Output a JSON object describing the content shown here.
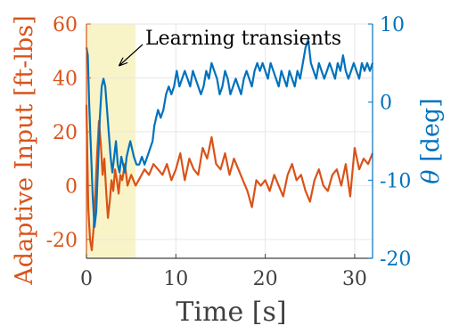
{
  "chart_data": {
    "type": "line",
    "xlabel": "Time [s]",
    "ylabel_left": "Adaptive Input [ft-lbs]",
    "ylabel_right_symbol": "θ",
    "ylabel_right_unit": "[deg]",
    "xlim": [
      0,
      32
    ],
    "ylim_left": [
      -27,
      60
    ],
    "ylim_right": [
      -20,
      10
    ],
    "xticks": [
      0,
      10,
      20,
      30
    ],
    "yticks_left": [
      -20,
      0,
      20,
      40,
      60
    ],
    "yticks_right": [
      -20,
      -10,
      0,
      10
    ],
    "grid": true,
    "annotation": {
      "text": "Learning transients",
      "arrow_target": [
        3.5,
        44
      ],
      "highlight_x": [
        0,
        5.5
      ],
      "highlight_color": "#f9f4c8"
    },
    "series": [
      {
        "axis": "left",
        "color": "#d95319",
        "points": [
          [
            0,
            30
          ],
          [
            0.2,
            -8
          ],
          [
            0.4,
            -20
          ],
          [
            0.6,
            -24
          ],
          [
            0.8,
            -16
          ],
          [
            1.0,
            -2
          ],
          [
            1.2,
            12
          ],
          [
            1.4,
            24
          ],
          [
            1.6,
            16
          ],
          [
            1.8,
            4
          ],
          [
            2.0,
            10
          ],
          [
            2.2,
            -2
          ],
          [
            2.4,
            -12
          ],
          [
            2.6,
            -6
          ],
          [
            2.8,
            2
          ],
          [
            3.0,
            -2
          ],
          [
            3.2,
            6
          ],
          [
            3.4,
            2
          ],
          [
            3.6,
            -3
          ],
          [
            3.8,
            4
          ],
          [
            4.0,
            2
          ],
          [
            4.3,
            8
          ],
          [
            4.6,
            0
          ],
          [
            5.0,
            4
          ],
          [
            5.5,
            0
          ],
          [
            6.0,
            3
          ],
          [
            6.5,
            6
          ],
          [
            7.0,
            4
          ],
          [
            7.5,
            8
          ],
          [
            8.0,
            6
          ],
          [
            8.5,
            4
          ],
          [
            9.0,
            8
          ],
          [
            9.5,
            2
          ],
          [
            10.0,
            6
          ],
          [
            10.5,
            12
          ],
          [
            11.0,
            2
          ],
          [
            11.5,
            10
          ],
          [
            12.0,
            6
          ],
          [
            12.5,
            4
          ],
          [
            13.0,
            14
          ],
          [
            13.5,
            10
          ],
          [
            14.0,
            18
          ],
          [
            14.5,
            8
          ],
          [
            15.0,
            6
          ],
          [
            15.5,
            12
          ],
          [
            16.0,
            4
          ],
          [
            16.5,
            10
          ],
          [
            17.0,
            6
          ],
          [
            17.5,
            2
          ],
          [
            18.0,
            -2
          ],
          [
            18.5,
            -8
          ],
          [
            19.0,
            2
          ],
          [
            19.5,
            0
          ],
          [
            20.0,
            2
          ],
          [
            20.5,
            -2
          ],
          [
            21.0,
            4
          ],
          [
            21.5,
            0
          ],
          [
            22.0,
            -4
          ],
          [
            22.5,
            4
          ],
          [
            23.0,
            8
          ],
          [
            23.5,
            2
          ],
          [
            24.0,
            4
          ],
          [
            24.5,
            -2
          ],
          [
            25.0,
            -6
          ],
          [
            25.5,
            2
          ],
          [
            26.0,
            6
          ],
          [
            26.5,
            0
          ],
          [
            27.0,
            -2
          ],
          [
            27.5,
            4
          ],
          [
            28.0,
            6
          ],
          [
            28.5,
            0
          ],
          [
            29.0,
            8
          ],
          [
            29.5,
            -4
          ],
          [
            30.0,
            14
          ],
          [
            30.5,
            6
          ],
          [
            31.0,
            10
          ],
          [
            31.5,
            8
          ],
          [
            32.0,
            12
          ]
        ]
      },
      {
        "axis": "right",
        "color": "#0072bd",
        "points": [
          [
            0,
            7
          ],
          [
            0.15,
            6
          ],
          [
            0.3,
            0
          ],
          [
            0.5,
            -6
          ],
          [
            0.7,
            -12
          ],
          [
            0.9,
            -16
          ],
          [
            1.1,
            -14
          ],
          [
            1.3,
            -8
          ],
          [
            1.5,
            -2
          ],
          [
            1.7,
            2
          ],
          [
            1.9,
            3
          ],
          [
            2.1,
            2
          ],
          [
            2.3,
            -1
          ],
          [
            2.5,
            -4
          ],
          [
            2.7,
            -7
          ],
          [
            2.9,
            -9
          ],
          [
            3.1,
            -7
          ],
          [
            3.3,
            -5
          ],
          [
            3.5,
            -8
          ],
          [
            3.7,
            -9
          ],
          [
            3.9,
            -7
          ],
          [
            4.1,
            -8
          ],
          [
            4.3,
            -9
          ],
          [
            4.5,
            -7
          ],
          [
            4.7,
            -6
          ],
          [
            4.9,
            -5
          ],
          [
            5.1,
            -6
          ],
          [
            5.3,
            -7
          ],
          [
            5.6,
            -8
          ],
          [
            5.9,
            -8
          ],
          [
            6.2,
            -7
          ],
          [
            6.5,
            -8
          ],
          [
            6.8,
            -7
          ],
          [
            7.1,
            -6
          ],
          [
            7.4,
            -5
          ],
          [
            7.6,
            -3
          ],
          [
            7.8,
            -2
          ],
          [
            8.0,
            -1
          ],
          [
            8.3,
            -2
          ],
          [
            8.6,
            -1
          ],
          [
            8.9,
            1
          ],
          [
            9.2,
            2
          ],
          [
            9.5,
            1
          ],
          [
            9.8,
            2
          ],
          [
            10.1,
            4
          ],
          [
            10.4,
            2
          ],
          [
            10.7,
            3
          ],
          [
            11.0,
            4
          ],
          [
            11.3,
            3
          ],
          [
            11.6,
            2
          ],
          [
            11.9,
            4
          ],
          [
            12.2,
            3
          ],
          [
            12.5,
            2
          ],
          [
            12.8,
            1
          ],
          [
            13.1,
            2
          ],
          [
            13.4,
            4
          ],
          [
            13.7,
            3
          ],
          [
            14.0,
            5
          ],
          [
            14.3,
            4
          ],
          [
            14.6,
            3
          ],
          [
            14.9,
            1
          ],
          [
            15.2,
            2
          ],
          [
            15.5,
            4
          ],
          [
            15.8,
            3
          ],
          [
            16.1,
            1
          ],
          [
            16.4,
            2
          ],
          [
            16.7,
            3
          ],
          [
            17.0,
            2
          ],
          [
            17.3,
            1
          ],
          [
            17.6,
            3
          ],
          [
            17.9,
            4
          ],
          [
            18.2,
            3
          ],
          [
            18.5,
            2
          ],
          [
            18.8,
            4
          ],
          [
            19.1,
            5
          ],
          [
            19.4,
            4
          ],
          [
            19.7,
            5
          ],
          [
            20.0,
            4
          ],
          [
            20.3,
            3
          ],
          [
            20.6,
            5
          ],
          [
            20.9,
            4
          ],
          [
            21.2,
            3
          ],
          [
            21.5,
            2
          ],
          [
            21.8,
            4
          ],
          [
            22.1,
            3
          ],
          [
            22.4,
            2
          ],
          [
            22.7,
            4
          ],
          [
            23.0,
            3
          ],
          [
            23.3,
            2
          ],
          [
            23.6,
            4
          ],
          [
            23.9,
            3
          ],
          [
            24.2,
            5
          ],
          [
            24.5,
            7
          ],
          [
            24.8,
            8
          ],
          [
            25.1,
            5
          ],
          [
            25.4,
            4
          ],
          [
            25.7,
            3
          ],
          [
            26.0,
            5
          ],
          [
            26.3,
            4
          ],
          [
            26.6,
            3
          ],
          [
            26.9,
            4
          ],
          [
            27.2,
            5
          ],
          [
            27.5,
            4
          ],
          [
            27.8,
            3
          ],
          [
            28.1,
            5
          ],
          [
            28.4,
            4
          ],
          [
            28.7,
            6
          ],
          [
            29.0,
            4
          ],
          [
            29.3,
            3
          ],
          [
            29.6,
            4
          ],
          [
            29.9,
            5
          ],
          [
            30.2,
            4
          ],
          [
            30.5,
            3
          ],
          [
            30.8,
            5
          ],
          [
            31.1,
            4
          ],
          [
            31.4,
            5
          ],
          [
            31.7,
            4
          ],
          [
            32.0,
            5
          ]
        ]
      }
    ]
  }
}
